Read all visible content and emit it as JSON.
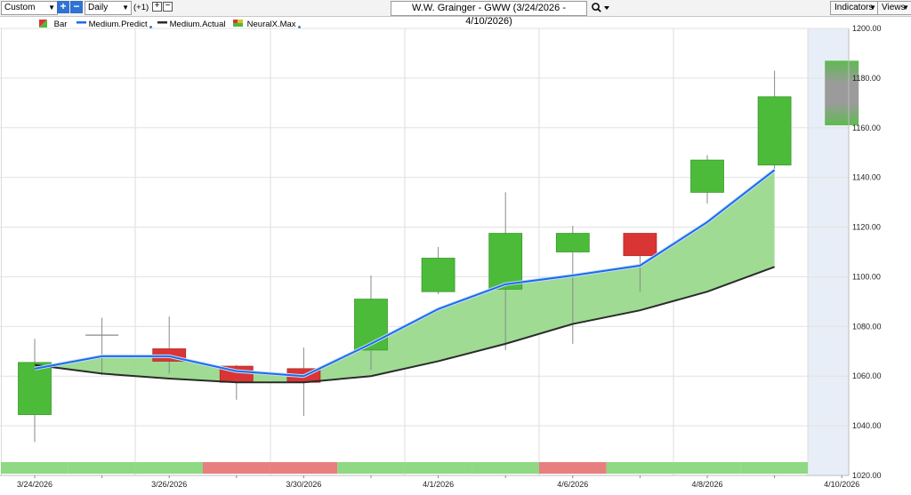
{
  "toolbar": {
    "range_select": "Custom",
    "period_select": "Daily",
    "offset_label": "(+1)",
    "chart_title": "W.W. Grainger - GWW (3/24/2026 - 4/10/2026)",
    "indicators_label": "Indicators",
    "views_label": "Views"
  },
  "legend": {
    "bar": "Bar",
    "predict": "Medium.Predict",
    "actual": "Medium.Actual",
    "neural": "NeuralX.Max"
  },
  "colors": {
    "up": "#4cbb3a",
    "down": "#d93535",
    "predict_line": "#1a6de8",
    "actual_line": "#2a2a2a",
    "fill": "#9ad98d",
    "band_green": "#8fd884",
    "band_red": "#e77f7f",
    "forecast_bg": "#e8eef7",
    "forecast_box": "#9b9b9b"
  },
  "chart_data": {
    "type": "candlestick",
    "ylim": [
      1020,
      1200
    ],
    "y_ticks": [
      "1200.00",
      "1180.00",
      "1160.00",
      "1140.00",
      "1120.00",
      "1100.00",
      "1080.00",
      "1060.00",
      "1040.00",
      "1020.00"
    ],
    "x_labels": [
      "3/24/2026",
      "3/26/2026",
      "3/30/2026",
      "4/1/2026",
      "4/6/2026",
      "4/8/2026",
      "4/10/2026"
    ],
    "candles": [
      {
        "open": 1044.5,
        "close": 1065.5,
        "high": 1075,
        "low": 1033.5
      },
      {
        "open": 1076.5,
        "close": 1076.5,
        "high": 1083.5,
        "low": 1060.5
      },
      {
        "open": 1071,
        "close": 1066,
        "high": 1084,
        "low": 1061
      },
      {
        "open": 1064,
        "close": 1057.5,
        "high": 1064.5,
        "low": 1050.5
      },
      {
        "open": 1063,
        "close": 1057.5,
        "high": 1071.5,
        "low": 1044
      },
      {
        "open": 1070.5,
        "close": 1091,
        "high": 1100.5,
        "low": 1062.5
      },
      {
        "open": 1094,
        "close": 1107.5,
        "high": 1112,
        "low": 1093
      },
      {
        "open": 1095,
        "close": 1117.5,
        "high": 1134,
        "low": 1070.5
      },
      {
        "open": 1110,
        "close": 1117.5,
        "high": 1120.5,
        "low": 1073
      },
      {
        "open": 1117.5,
        "close": 1108.5,
        "high": 1117.5,
        "low": 1094
      },
      {
        "open": 1134,
        "close": 1147,
        "high": 1149,
        "low": 1129.5
      },
      {
        "open": 1145,
        "close": 1172.5,
        "high": 1183,
        "low": 1143.5
      }
    ],
    "forecast": {
      "top": 1187,
      "bottom": 1161
    },
    "series": [
      {
        "name": "Medium.Predict",
        "values": [
          1063,
          1068,
          1068,
          1062,
          1060,
          1073,
          1087,
          1097,
          1100.5,
          1104.5,
          1122,
          1143
        ]
      },
      {
        "name": "Medium.Actual",
        "values": [
          1064.5,
          1061,
          1059,
          1057.5,
          1057.5,
          1060,
          1066,
          1073,
          1081,
          1086.5,
          1094,
          1104
        ]
      }
    ],
    "bands": [
      "up",
      "up",
      "up",
      "down",
      "down",
      "up",
      "up",
      "up",
      "down",
      "up",
      "up",
      "up"
    ]
  }
}
